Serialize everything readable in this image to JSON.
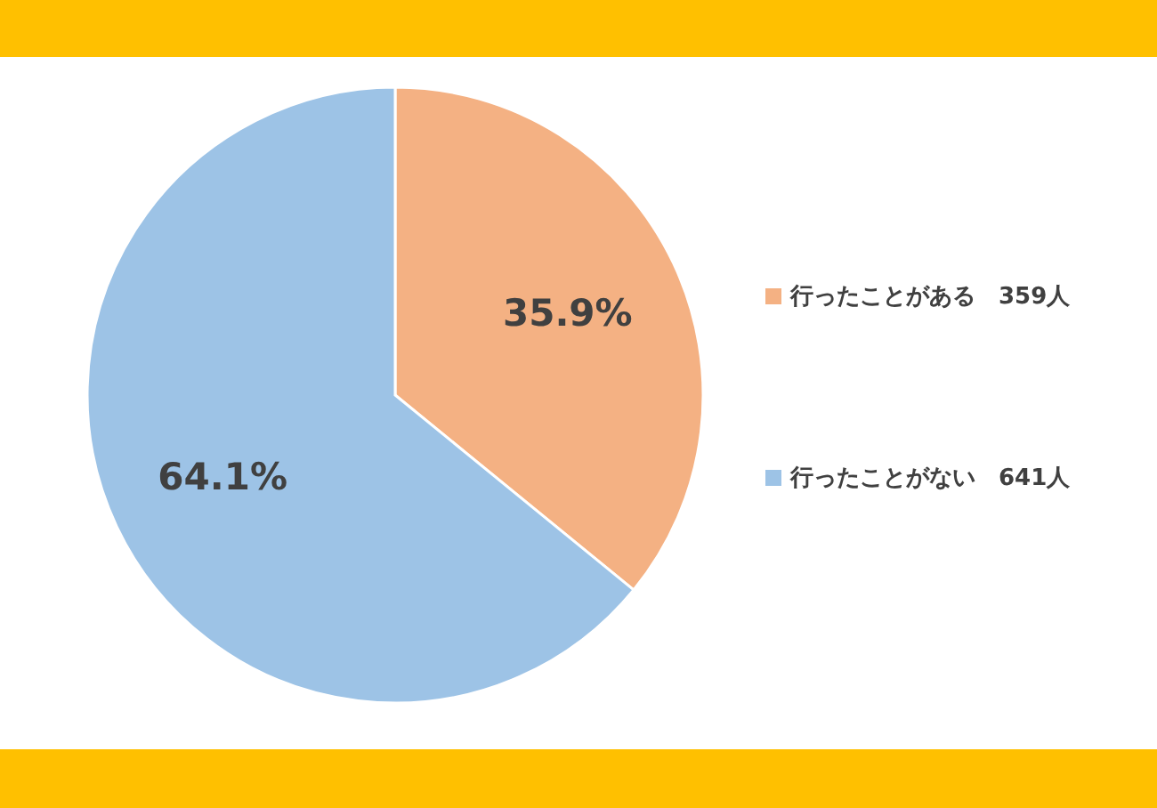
{
  "chart_data": {
    "type": "pie",
    "categories": [
      "行ったことがある　359人",
      "行ったことがない　641人"
    ],
    "values": [
      35.9,
      64.1
    ],
    "colors": [
      "#f4b183",
      "#9dc3e6"
    ],
    "value_labels": [
      "35.9%",
      "64.1%"
    ],
    "legend": "right"
  }
}
